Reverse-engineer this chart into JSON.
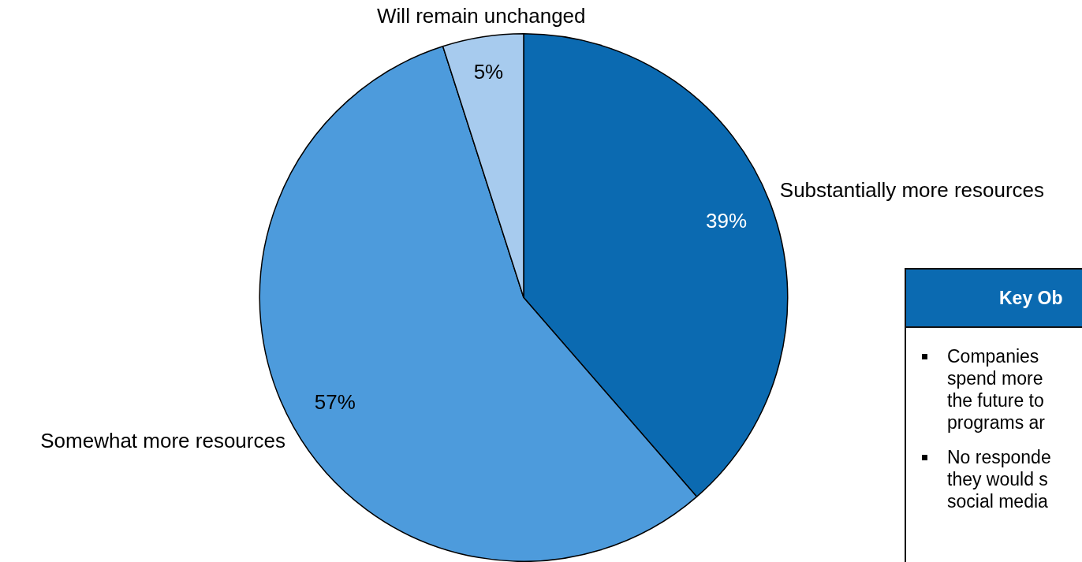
{
  "chart_data": {
    "type": "pie",
    "categories": [
      "Substantially more resources",
      "Somewhat more resources",
      "Will remain unchanged"
    ],
    "values": [
      39,
      57,
      5
    ],
    "colors": [
      "#0b6ab1",
      "#4d9bdc",
      "#a7cbee"
    ],
    "value_labels": [
      "39%",
      "57%",
      "5%"
    ],
    "legend": false,
    "annotations": [
      "Key Ob",
      "Companies\nspend more\nthe future to\nprograms ar",
      "No responde\nthey would s\nsocial media"
    ]
  }
}
